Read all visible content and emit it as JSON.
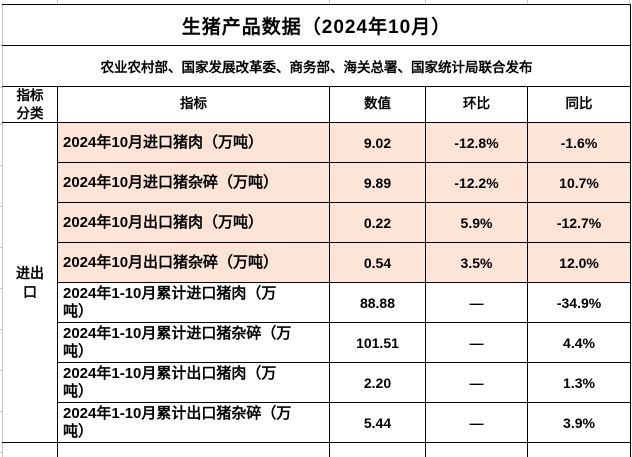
{
  "table": {
    "title": "生猪产品数据（2024年10月）",
    "subtitle": "农业农村部、国家发展改革委、商务部、海关总署、国家统计局联合发布",
    "headers": {
      "category": "指标分类",
      "indicator": "指标",
      "value": "数值",
      "mom": "环比",
      "yoy": "同比"
    },
    "category_label": "进出口",
    "rows": [
      {
        "indicator": "2024年10月进口猪肉（万吨）",
        "value": "9.02",
        "mom": "-12.8%",
        "yoy": "-1.6%",
        "highlighted": true
      },
      {
        "indicator": "2024年10月进口猪杂碎（万吨）",
        "value": "9.89",
        "mom": "-12.2%",
        "yoy": "10.7%",
        "highlighted": true
      },
      {
        "indicator": "2024年10月出口猪肉（万吨）",
        "value": "0.22",
        "mom": "5.9%",
        "yoy": "-12.7%",
        "highlighted": true
      },
      {
        "indicator": "2024年10月出口猪杂碎（万吨）",
        "value": "0.54",
        "mom": "3.5%",
        "yoy": "12.0%",
        "highlighted": true
      },
      {
        "indicator": "2024年1-10月累计进口猪肉（万吨）",
        "value": "88.88",
        "mom": "—",
        "yoy": "-34.9%",
        "highlighted": false
      },
      {
        "indicator": "2024年1-10月累计进口猪杂碎（万吨）",
        "value": "101.51",
        "mom": "—",
        "yoy": "4.4%",
        "highlighted": false
      },
      {
        "indicator": "2024年1-10月累计出口猪肉（万吨）",
        "value": "2.20",
        "mom": "—",
        "yoy": "1.3%",
        "highlighted": false
      },
      {
        "indicator": "2024年1-10月累计出口猪杂碎（万吨）",
        "value": "5.44",
        "mom": "—",
        "yoy": "3.9%",
        "highlighted": false
      }
    ],
    "colors": {
      "highlight_row": "#fce4d6",
      "border": "#000000",
      "gridline": "#c9c9c9",
      "text": "#000000",
      "background": "#ffffff"
    }
  }
}
